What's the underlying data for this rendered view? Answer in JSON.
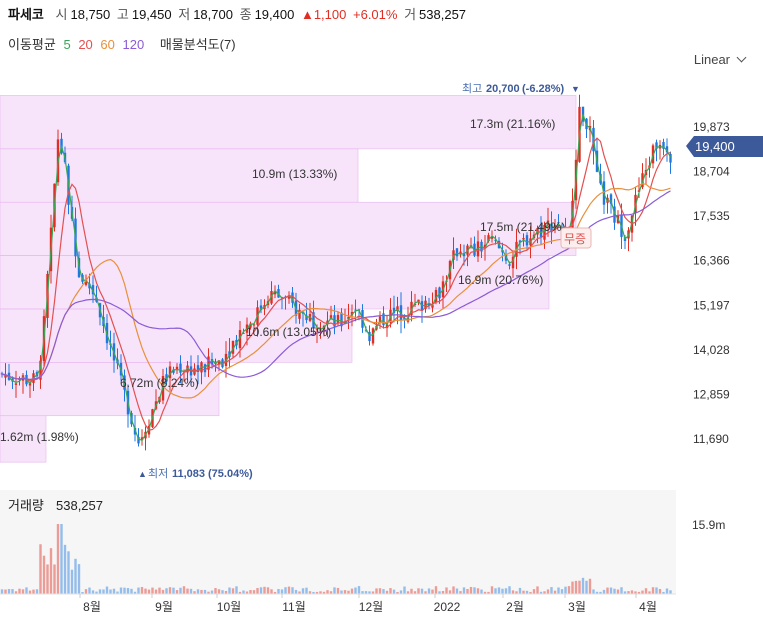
{
  "header": {
    "name": "파세코",
    "open_label": "시",
    "open": "18,750",
    "high_label": "고",
    "high": "19,450",
    "low_label": "저",
    "low": "18,700",
    "close_label": "종",
    "close": "19,400",
    "change_arrow": "▲",
    "change": "1,100",
    "change_pct": "+6.01%",
    "volume_label": "거",
    "volume": "538,257"
  },
  "ma_legend": {
    "title": "이동평균",
    "periods": [
      {
        "label": "5",
        "color": "#3aa655"
      },
      {
        "label": "20",
        "color": "#e35050"
      },
      {
        "label": "60",
        "color": "#e8903a"
      },
      {
        "label": "120",
        "color": "#8a5cd6"
      }
    ],
    "volume_profile": "매물분석도(7)"
  },
  "scale": {
    "label": "Linear"
  },
  "colors": {
    "up": "#e02e24",
    "down": "#1e78e0",
    "profile": "#f1cdf5",
    "accent": "#3c5a9a"
  },
  "chart_data": {
    "type": "candlestick",
    "yaxis_ticks": [
      "19,873",
      "18,704",
      "17,535",
      "16,366",
      "15,197",
      "14,028",
      "12,859",
      "11,690"
    ],
    "yaxis_tick_values": [
      19873,
      18704,
      17535,
      16366,
      15197,
      14028,
      12859,
      11690
    ],
    "ylim": [
      11083,
      20700
    ],
    "current_price": {
      "label": "19,400",
      "value": 19400
    },
    "xaxis_ticks": [
      "8월",
      "9월",
      "10월",
      "11월",
      "12월",
      "2022",
      "2월",
      "3월",
      "4월"
    ],
    "max_marker": {
      "prefix": "최고",
      "value": "20,700",
      "pct": "(-6.28%)",
      "arrow": "▼"
    },
    "min_marker": {
      "prefix": "최저",
      "value": "11,083",
      "pct": "(75.04%)",
      "arrow": "▲"
    },
    "badge": "무증",
    "volume_profile": [
      {
        "label": "17.3m (21.16%)",
        "low": 19300,
        "high": 20700,
        "share": 21.16
      },
      {
        "label": "10.9m (13.33%)",
        "low": 17900,
        "high": 19300,
        "share": 13.33
      },
      {
        "label": "17.5m (21.49%)",
        "low": 16500,
        "high": 17900,
        "share": 21.49
      },
      {
        "label": "16.9m (20.76%)",
        "low": 15100,
        "high": 16500,
        "share": 20.76
      },
      {
        "label": "10.6m (13.05%)",
        "low": 13700,
        "high": 15100,
        "share": 13.05
      },
      {
        "label": "6.72m (8.24%)",
        "low": 12300,
        "high": 13700,
        "share": 8.24
      },
      {
        "label": "1.62m (1.98%)",
        "low": 11083,
        "high": 12300,
        "share": 1.98
      }
    ],
    "volume": {
      "title": "거래량",
      "value": "538,257",
      "axis_tick": "15.9m",
      "axis_tick_value": 15.9
    }
  }
}
